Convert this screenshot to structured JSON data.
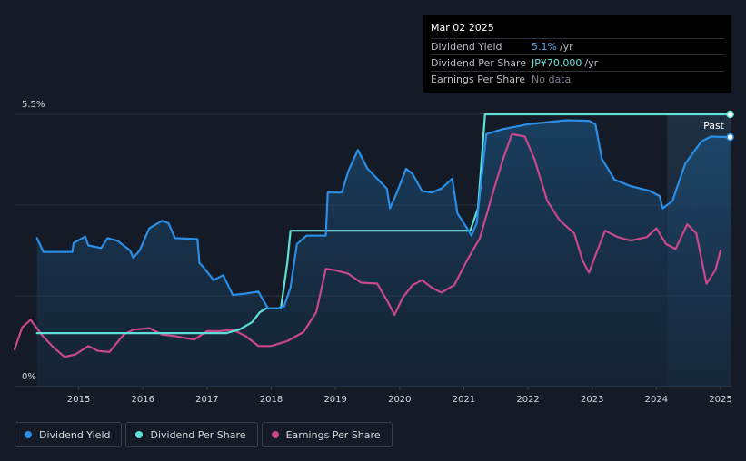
{
  "tooltip": {
    "date": "Mar 02 2025",
    "rows": [
      {
        "label": "Dividend Yield",
        "value": "5.1%",
        "unit": "/yr",
        "color": "#5aa8ee"
      },
      {
        "label": "Dividend Per Share",
        "value": "JP¥70.000",
        "unit": "/yr",
        "color": "#6de4de"
      },
      {
        "label": "Earnings Per Share",
        "value": "No data",
        "unit": "",
        "color": "#7a7f88"
      }
    ]
  },
  "legend": [
    {
      "label": "Dividend Yield",
      "color": "#2b8ee6"
    },
    {
      "label": "Dividend Per Share",
      "color": "#5ee0d8"
    },
    {
      "label": "Earnings Per Share",
      "color": "#c8488a"
    }
  ],
  "chart_data": {
    "type": "line",
    "y_ticks": [
      "5.5%",
      "0%"
    ],
    "ylim": [
      0,
      5.5
    ],
    "xlim": [
      2014.0,
      2025.17
    ],
    "x_ticks": [
      "2015",
      "2016",
      "2017",
      "2018",
      "2019",
      "2020",
      "2021",
      "2022",
      "2023",
      "2024",
      "2025"
    ],
    "past_label": "Past",
    "past_start": 2024.17,
    "series": [
      {
        "name": "Dividend Yield",
        "color": "#2b8ee6",
        "points": [
          [
            2014.35,
            3.0
          ],
          [
            2014.45,
            2.72
          ],
          [
            2014.6,
            2.72
          ],
          [
            2014.9,
            2.72
          ],
          [
            2014.92,
            2.9
          ],
          [
            2015.1,
            3.03
          ],
          [
            2015.15,
            2.85
          ],
          [
            2015.35,
            2.8
          ],
          [
            2015.45,
            3.0
          ],
          [
            2015.6,
            2.95
          ],
          [
            2015.8,
            2.75
          ],
          [
            2015.85,
            2.6
          ],
          [
            2015.95,
            2.75
          ],
          [
            2016.1,
            3.2
          ],
          [
            2016.3,
            3.35
          ],
          [
            2016.4,
            3.3
          ],
          [
            2016.5,
            3.0
          ],
          [
            2016.85,
            2.98
          ],
          [
            2016.88,
            2.5
          ],
          [
            2016.95,
            2.4
          ],
          [
            2017.1,
            2.15
          ],
          [
            2017.25,
            2.25
          ],
          [
            2017.4,
            1.85
          ],
          [
            2017.6,
            1.88
          ],
          [
            2017.8,
            1.92
          ],
          [
            2017.85,
            1.8
          ],
          [
            2017.95,
            1.58
          ],
          [
            2018.1,
            1.58
          ],
          [
            2018.2,
            1.62
          ],
          [
            2018.3,
            2.0
          ],
          [
            2018.4,
            2.88
          ],
          [
            2018.55,
            3.05
          ],
          [
            2018.85,
            3.05
          ],
          [
            2018.88,
            3.92
          ],
          [
            2019.1,
            3.92
          ],
          [
            2019.2,
            4.35
          ],
          [
            2019.35,
            4.78
          ],
          [
            2019.5,
            4.4
          ],
          [
            2019.8,
            4.0
          ],
          [
            2019.85,
            3.6
          ],
          [
            2019.95,
            3.9
          ],
          [
            2020.1,
            4.4
          ],
          [
            2020.2,
            4.3
          ],
          [
            2020.35,
            3.95
          ],
          [
            2020.5,
            3.92
          ],
          [
            2020.65,
            4.0
          ],
          [
            2020.82,
            4.2
          ],
          [
            2020.9,
            3.5
          ],
          [
            2021.05,
            3.2
          ],
          [
            2021.12,
            3.05
          ],
          [
            2021.2,
            3.3
          ],
          [
            2021.35,
            5.1
          ],
          [
            2021.6,
            5.2
          ],
          [
            2022.0,
            5.3
          ],
          [
            2022.6,
            5.38
          ],
          [
            2022.95,
            5.37
          ],
          [
            2023.05,
            5.3
          ],
          [
            2023.15,
            4.6
          ],
          [
            2023.35,
            4.18
          ],
          [
            2023.6,
            4.05
          ],
          [
            2023.9,
            3.95
          ],
          [
            2024.05,
            3.85
          ],
          [
            2024.1,
            3.6
          ],
          [
            2024.25,
            3.75
          ],
          [
            2024.45,
            4.5
          ],
          [
            2024.7,
            4.95
          ],
          [
            2024.85,
            5.05
          ],
          [
            2025.15,
            5.04
          ]
        ]
      },
      {
        "name": "Dividend Per Share",
        "color": "#5ee0d8",
        "points": [
          [
            2014.35,
            1.08
          ],
          [
            2017.3,
            1.08
          ],
          [
            2017.5,
            1.15
          ],
          [
            2017.7,
            1.3
          ],
          [
            2017.82,
            1.5
          ],
          [
            2017.92,
            1.58
          ],
          [
            2018.15,
            1.58
          ],
          [
            2018.25,
            2.5
          ],
          [
            2018.3,
            3.15
          ],
          [
            2021.1,
            3.15
          ],
          [
            2021.22,
            3.6
          ],
          [
            2021.33,
            5.5
          ],
          [
            2025.15,
            5.5
          ]
        ]
      },
      {
        "name": "Earnings Per Share",
        "color": "#c8488a",
        "points": [
          [
            2014.0,
            0.75
          ],
          [
            2014.12,
            1.2
          ],
          [
            2014.25,
            1.35
          ],
          [
            2014.42,
            1.05
          ],
          [
            2014.6,
            0.8
          ],
          [
            2014.78,
            0.6
          ],
          [
            2014.95,
            0.65
          ],
          [
            2015.15,
            0.82
          ],
          [
            2015.3,
            0.72
          ],
          [
            2015.48,
            0.7
          ],
          [
            2015.7,
            1.05
          ],
          [
            2015.85,
            1.15
          ],
          [
            2016.1,
            1.18
          ],
          [
            2016.3,
            1.05
          ],
          [
            2016.5,
            1.02
          ],
          [
            2016.8,
            0.95
          ],
          [
            2017.0,
            1.12
          ],
          [
            2017.2,
            1.12
          ],
          [
            2017.4,
            1.15
          ],
          [
            2017.6,
            1.02
          ],
          [
            2017.8,
            0.82
          ],
          [
            2018.0,
            0.82
          ],
          [
            2018.25,
            0.92
          ],
          [
            2018.5,
            1.1
          ],
          [
            2018.7,
            1.5
          ],
          [
            2018.85,
            2.38
          ],
          [
            2019.0,
            2.35
          ],
          [
            2019.2,
            2.28
          ],
          [
            2019.4,
            2.1
          ],
          [
            2019.65,
            2.08
          ],
          [
            2019.82,
            1.7
          ],
          [
            2019.92,
            1.45
          ],
          [
            2020.05,
            1.8
          ],
          [
            2020.2,
            2.05
          ],
          [
            2020.35,
            2.15
          ],
          [
            2020.5,
            2.0
          ],
          [
            2020.65,
            1.9
          ],
          [
            2020.85,
            2.05
          ],
          [
            2021.05,
            2.55
          ],
          [
            2021.25,
            3.0
          ],
          [
            2021.45,
            3.9
          ],
          [
            2021.6,
            4.55
          ],
          [
            2021.75,
            5.1
          ],
          [
            2021.95,
            5.05
          ],
          [
            2022.1,
            4.6
          ],
          [
            2022.3,
            3.75
          ],
          [
            2022.5,
            3.35
          ],
          [
            2022.72,
            3.1
          ],
          [
            2022.85,
            2.55
          ],
          [
            2022.95,
            2.3
          ],
          [
            2023.05,
            2.65
          ],
          [
            2023.2,
            3.15
          ],
          [
            2023.4,
            3.02
          ],
          [
            2023.6,
            2.95
          ],
          [
            2023.85,
            3.02
          ],
          [
            2024.0,
            3.2
          ],
          [
            2024.15,
            2.88
          ],
          [
            2024.3,
            2.78
          ],
          [
            2024.48,
            3.28
          ],
          [
            2024.62,
            3.1
          ],
          [
            2024.78,
            2.08
          ],
          [
            2024.92,
            2.35
          ],
          [
            2025.0,
            2.75
          ]
        ]
      }
    ]
  }
}
